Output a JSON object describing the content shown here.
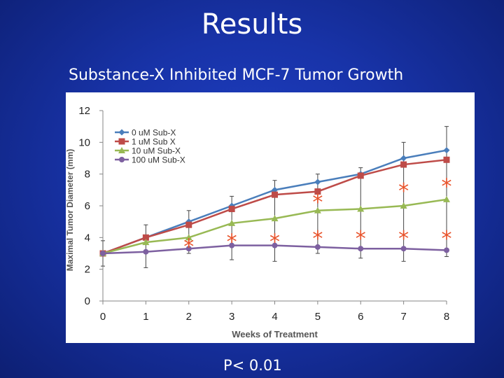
{
  "slide": {
    "title": "Results",
    "subtitle": "Substance-X Inhibited MCF-7 Tumor Growth",
    "footnote": "P< 0.01"
  },
  "colors": {
    "background": "#1833a8",
    "series_0": "#4a7ebb",
    "series_1": "#be4b48",
    "series_2": "#98b954",
    "series_3": "#7d60a0",
    "significance": "#e8522a"
  },
  "chart_data": {
    "type": "line",
    "xlabel": "Weeks of Treatment",
    "ylabel": "Maximal Tumor Diameter (mm)",
    "x": [
      0,
      1,
      2,
      3,
      4,
      5,
      6,
      7,
      8
    ],
    "xlim": [
      0,
      8
    ],
    "ylim": [
      0,
      12
    ],
    "yticks": [
      0,
      2,
      4,
      6,
      8,
      10,
      12
    ],
    "grid": false,
    "legend_position": "top-left",
    "series": [
      {
        "name": "0 uM Sub-X",
        "marker": "diamond",
        "values": [
          3.0,
          4.0,
          5.0,
          6.0,
          7.0,
          7.5,
          8.0,
          9.0,
          9.5
        ]
      },
      {
        "name": "1 uM Sub X",
        "marker": "square",
        "values": [
          3.0,
          4.0,
          4.8,
          5.8,
          6.7,
          6.9,
          7.9,
          8.6,
          8.9
        ]
      },
      {
        "name": "10 uM Sub-X",
        "marker": "triangle",
        "values": [
          3.0,
          3.7,
          4.0,
          4.9,
          5.2,
          5.7,
          5.8,
          6.0,
          6.4
        ]
      },
      {
        "name": "100 uM Sub-X",
        "marker": "circle",
        "values": [
          3.0,
          3.1,
          3.3,
          3.5,
          3.5,
          3.4,
          3.3,
          3.3,
          3.2
        ]
      }
    ],
    "error_bars": [
      {
        "x": 0,
        "low": 2.2,
        "high": 3.8
      },
      {
        "x": 1,
        "low": 2.1,
        "high": 4.8
      },
      {
        "x": 2,
        "low": 3.0,
        "high": 5.7
      },
      {
        "x": 3,
        "low": 2.6,
        "high": 6.6
      },
      {
        "x": 4,
        "low": 2.5,
        "high": 7.6
      },
      {
        "x": 5,
        "low": 3.0,
        "high": 8.0
      },
      {
        "x": 6,
        "low": 2.7,
        "high": 8.4
      },
      {
        "x": 7,
        "low": 2.5,
        "high": 10.0
      },
      {
        "x": 8,
        "low": 2.8,
        "high": 11.0
      }
    ],
    "significance_markers": [
      {
        "x": 2,
        "y": 3.6,
        "symbol": "*"
      },
      {
        "x": 3,
        "y": 3.9,
        "symbol": "*"
      },
      {
        "x": 4,
        "y": 3.9,
        "symbol": "*"
      },
      {
        "x": 5,
        "y": 4.1,
        "symbol": "*"
      },
      {
        "x": 5,
        "y": 6.4,
        "symbol": "*"
      },
      {
        "x": 6,
        "y": 4.1,
        "symbol": "*"
      },
      {
        "x": 7,
        "y": 4.1,
        "symbol": "*"
      },
      {
        "x": 7,
        "y": 7.1,
        "symbol": "*"
      },
      {
        "x": 8,
        "y": 4.1,
        "symbol": "*"
      },
      {
        "x": 8,
        "y": 7.4,
        "symbol": "*"
      }
    ]
  }
}
